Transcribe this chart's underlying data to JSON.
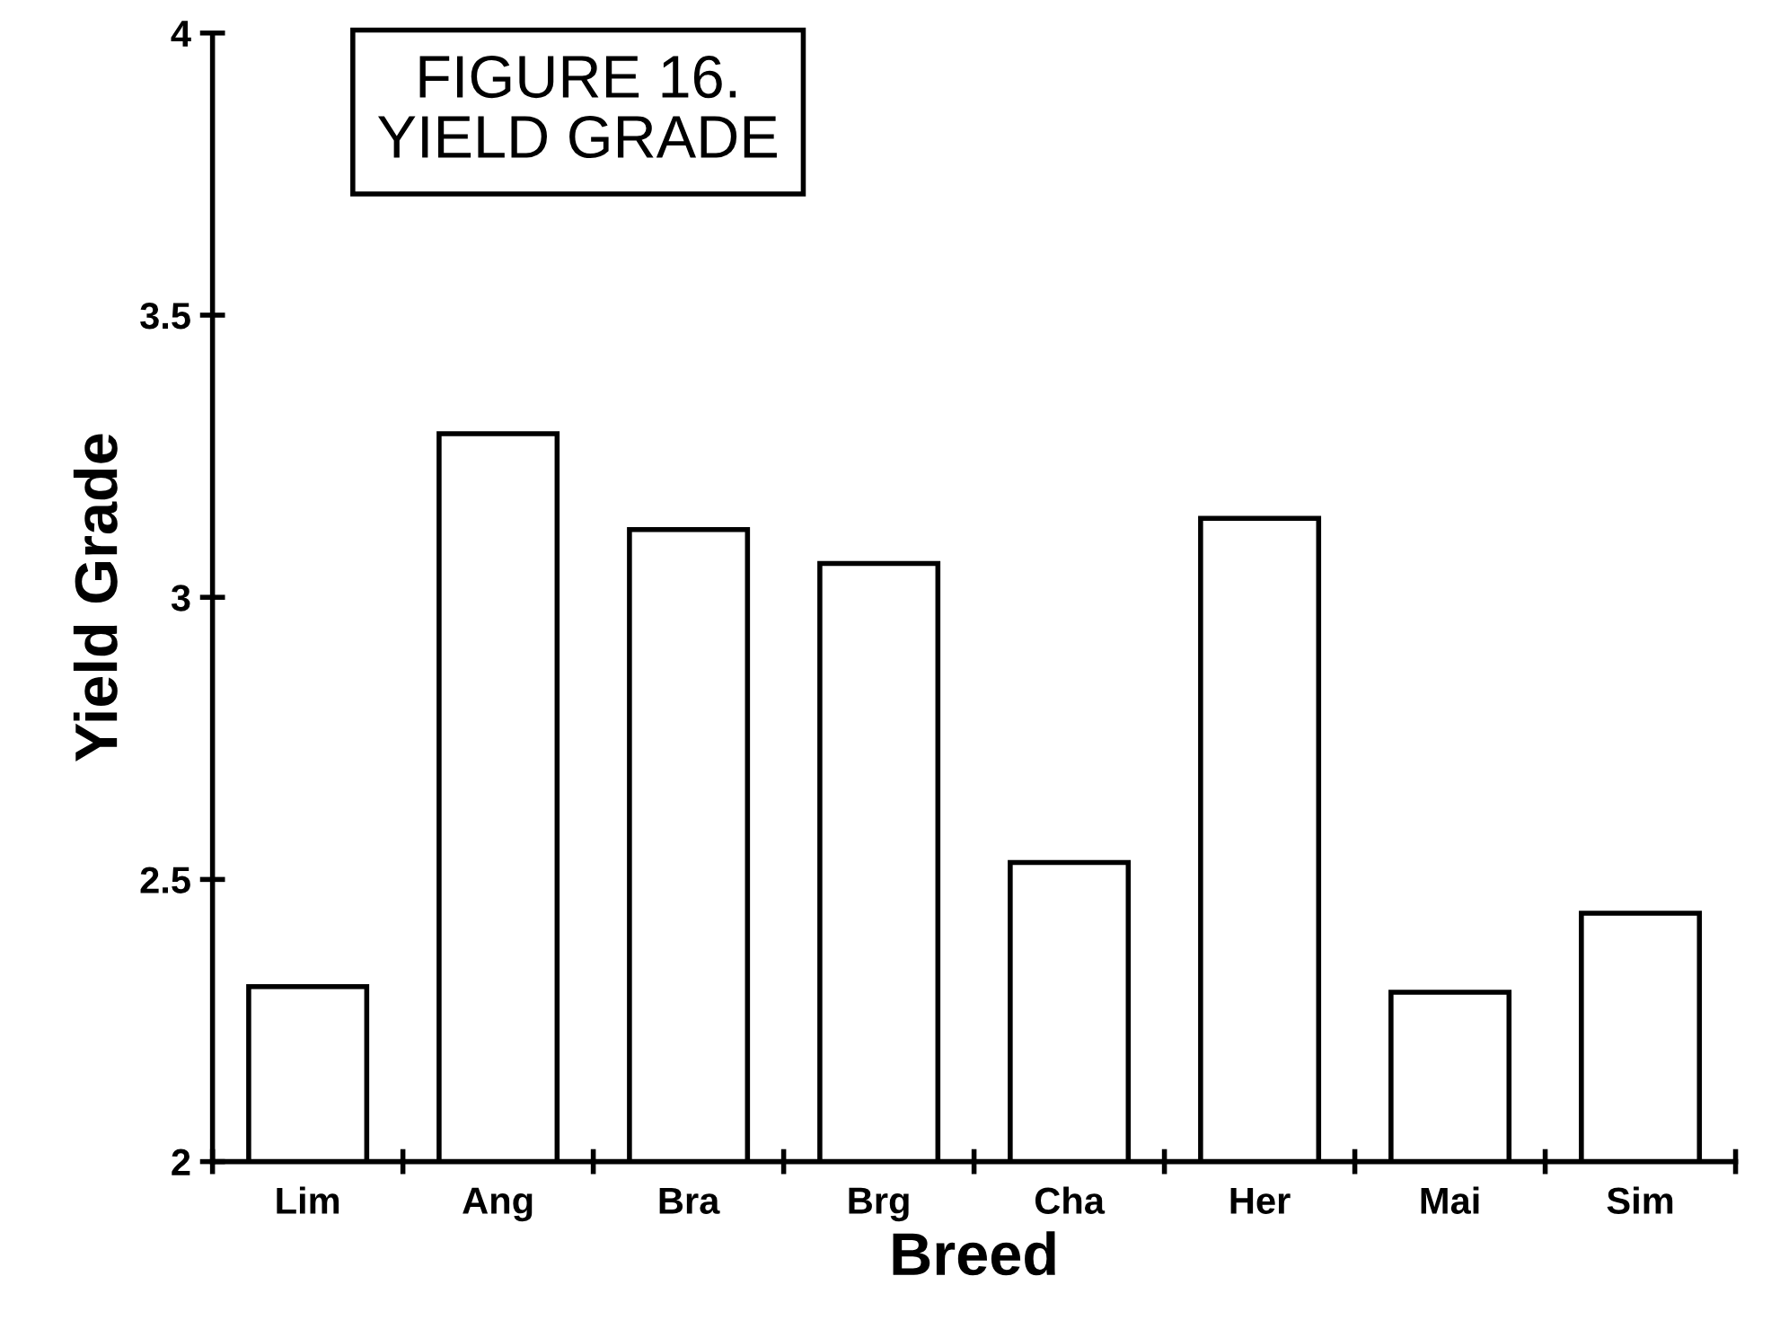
{
  "chart_data": {
    "type": "bar",
    "title": "FIGURE 16.\nYIELD GRADE",
    "xlabel": "Breed",
    "ylabel": "Yield Grade",
    "categories": [
      "Lim",
      "Ang",
      "Bra",
      "Brg",
      "Cha",
      "Her",
      "Mai",
      "Sim"
    ],
    "values": [
      2.31,
      3.29,
      3.12,
      3.06,
      2.53,
      3.14,
      2.3,
      2.44
    ],
    "color": "#ffffff",
    "ylim": [
      2,
      4
    ],
    "yticks": [
      2,
      2.5,
      3,
      3.5,
      4
    ],
    "grid": false
  }
}
